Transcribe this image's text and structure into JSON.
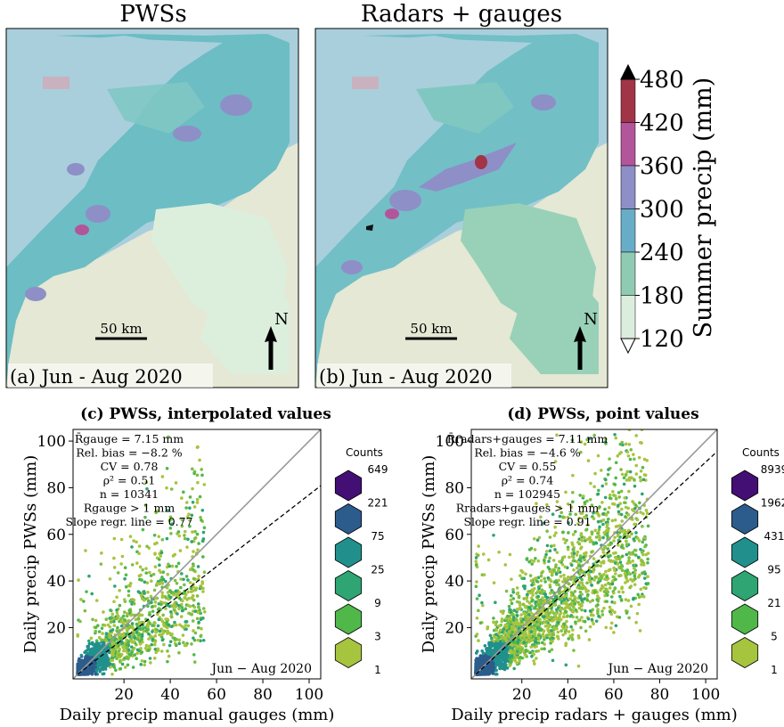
{
  "maps": [
    {
      "title": "PWSs",
      "label": "(a) Jun - Aug 2020",
      "scalebar": "50 km",
      "north": "N"
    },
    {
      "title": "Radars + gauges",
      "label": "(b) Jun - Aug 2020",
      "scalebar": "50 km",
      "north": "N"
    }
  ],
  "colorbar": {
    "label": "Summer precip (mm)",
    "ticks": [
      "480",
      "420",
      "360",
      "300",
      "240",
      "180",
      "120"
    ],
    "colors": [
      "#a23448",
      "#b3559a",
      "#8e8fc6",
      "#67adc7",
      "#8fcbb2",
      "#dbeedd"
    ]
  },
  "chart_data": [
    {
      "type": "scatter",
      "title": "(c) PWSs, interpolated values",
      "xlabel": "Daily precip manual gauges (mm)",
      "ylabel": "Daily precip PWSs (mm)",
      "xlim": [
        -2,
        105
      ],
      "ylim": [
        -2,
        105
      ],
      "xticks": [
        20,
        40,
        60,
        80,
        100
      ],
      "yticks": [
        20,
        40,
        60,
        80,
        100
      ],
      "annotation": "Jun − Aug 2020",
      "stats": [
        "R̄gauge = 7.15 mm",
        "Rel. bias = −8.2 %",
        "CV = 0.78",
        "ρ² = 0.51",
        "n = 10341",
        "Rgauge > 1 mm",
        "Slope regr. line = 0.77"
      ],
      "regression_slope": 0.77,
      "legend_title": "Counts",
      "legend_counts": [
        "649",
        "221",
        "75",
        "25",
        "9",
        "3",
        "1"
      ]
    },
    {
      "type": "scatter",
      "title": "(d) PWSs, point values",
      "xlabel": "Daily precip radars + gauges (mm)",
      "ylabel": "Daily precip PWSs (mm)",
      "xlim": [
        -2,
        105
      ],
      "ylim": [
        -2,
        105
      ],
      "xticks": [
        20,
        40,
        60,
        80,
        100
      ],
      "yticks": [
        20,
        40,
        60,
        80,
        100
      ],
      "annotation": "Jun − Aug 2020",
      "stats": [
        "R̄radars+gauges = 7.11 mm",
        "Rel. bias = −4.6 %",
        "CV = 0.55",
        "ρ² = 0.74",
        "n = 102945",
        "Rradars+gauges > 1 mm",
        "Slope regr. line = 0.91"
      ],
      "regression_slope": 0.91,
      "legend_title": "Counts",
      "legend_counts": [
        "8939",
        "1962",
        "431",
        "95",
        "21",
        "5",
        "1"
      ]
    }
  ]
}
